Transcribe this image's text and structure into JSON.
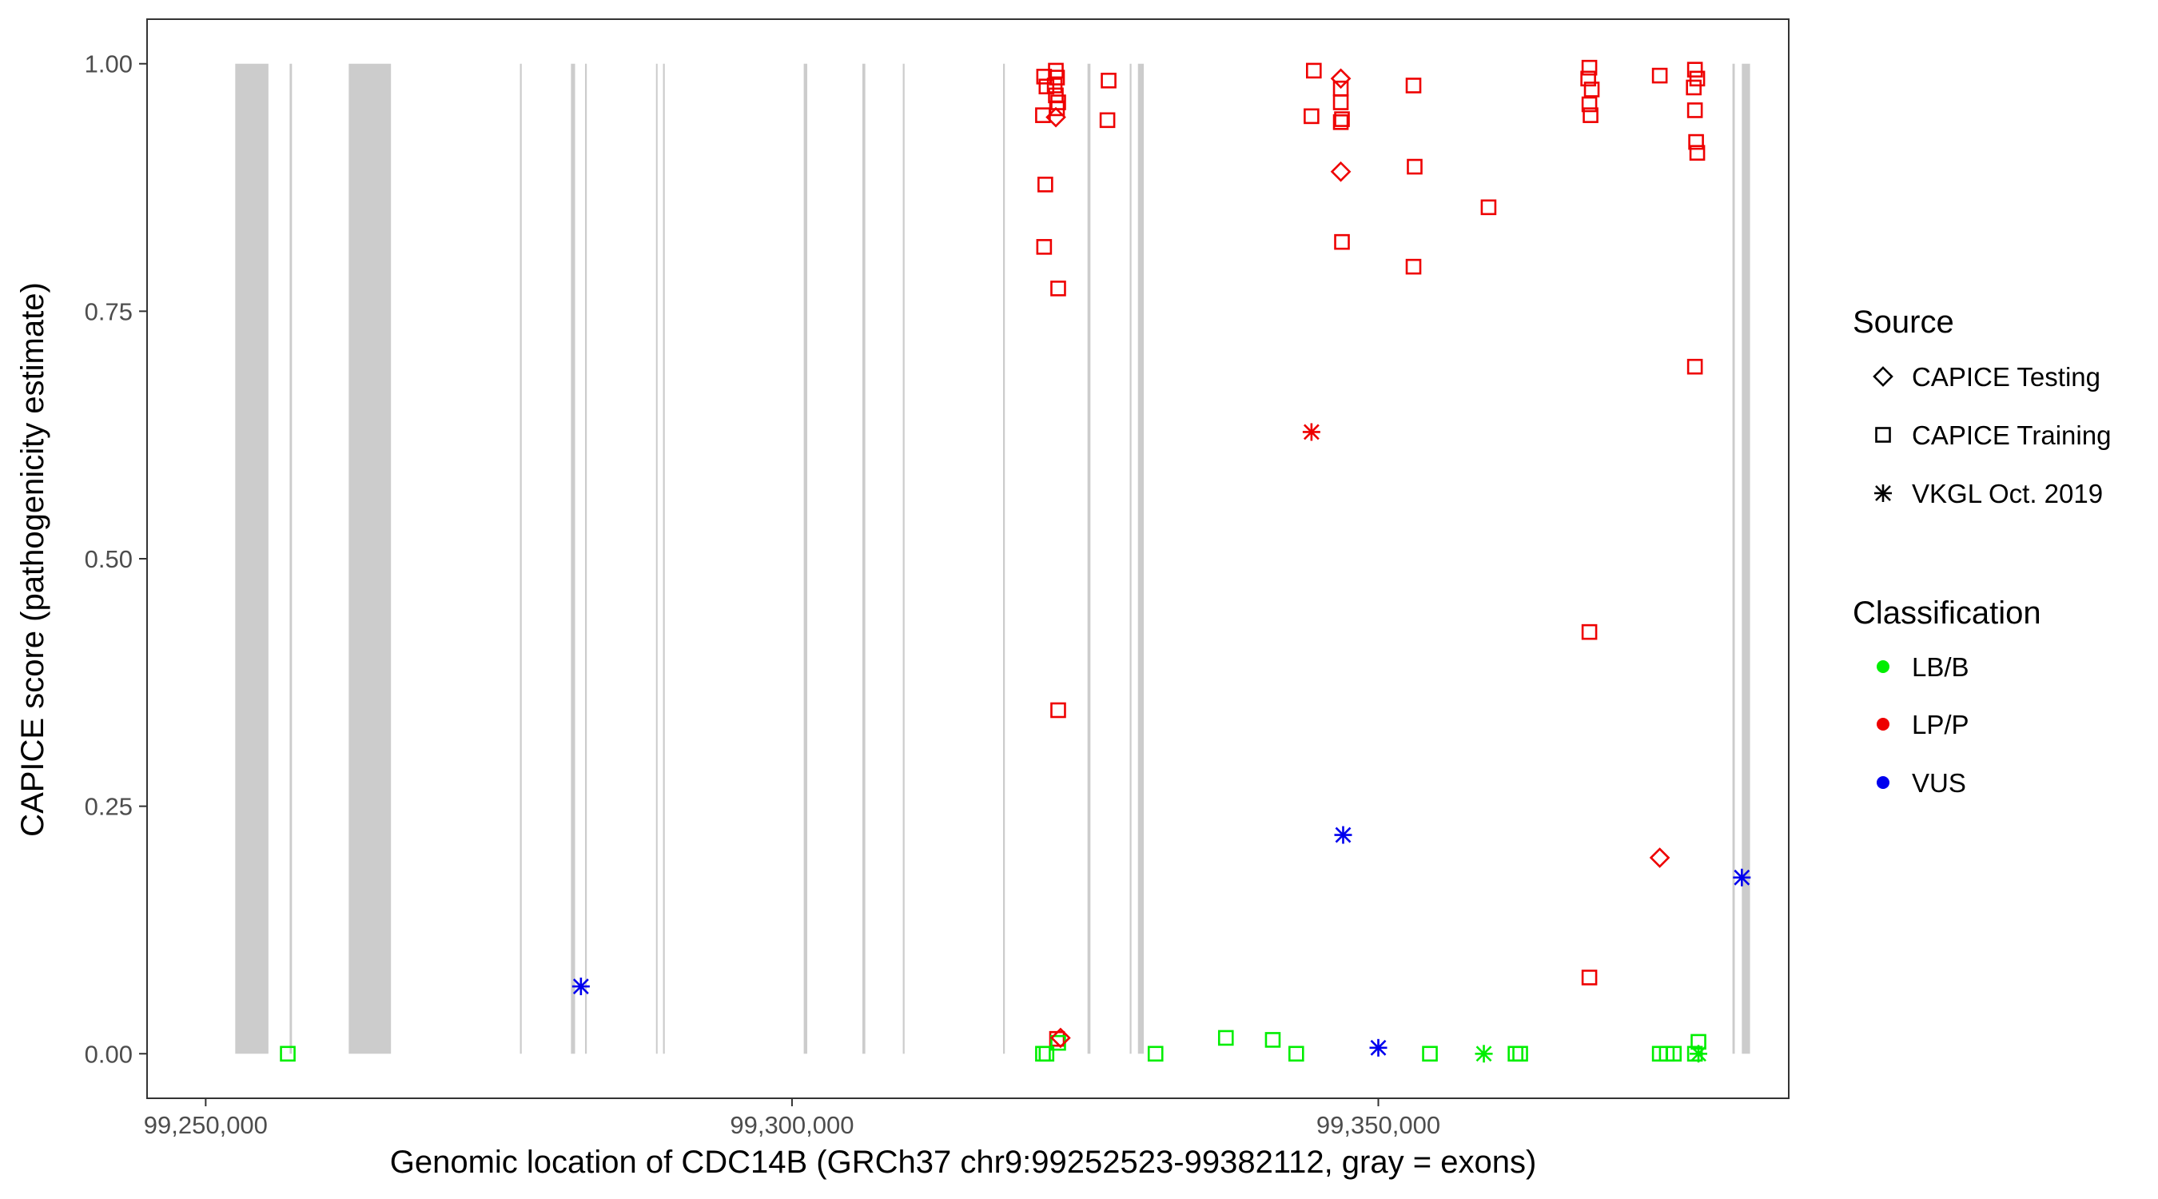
{
  "chart_data": {
    "type": "scatter",
    "xlabel": "Genomic location of CDC14B (GRCh37 chr9:99252523-99382112, gray = exons)",
    "ylabel": "CAPICE score (pathogenicity estimate)",
    "xlim": [
      99245000,
      99385000
    ],
    "ylim": [
      -0.045,
      1.045
    ],
    "x_ticks": [
      {
        "value": 99250000,
        "label": "99,250,000"
      },
      {
        "value": 99300000,
        "label": "99,300,000"
      },
      {
        "value": 99350000,
        "label": "99,350,000"
      }
    ],
    "y_ticks": [
      {
        "value": 0.0,
        "label": "0.00"
      },
      {
        "value": 0.25,
        "label": "0.25"
      },
      {
        "value": 0.5,
        "label": "0.50"
      },
      {
        "value": 0.75,
        "label": "0.75"
      },
      {
        "value": 1.0,
        "label": "1.00"
      }
    ],
    "grid": false,
    "exons": [
      [
        99252520,
        99255350
      ],
      [
        99257160,
        99257360
      ],
      [
        99262200,
        99265800
      ],
      [
        99276800,
        99276950
      ],
      [
        99281150,
        99281500
      ],
      [
        99282350,
        99282500
      ],
      [
        99288400,
        99288500
      ],
      [
        99289000,
        99289150
      ],
      [
        99301000,
        99301300
      ],
      [
        99306000,
        99306250
      ],
      [
        99309450,
        99309600
      ],
      [
        99318000,
        99318150
      ],
      [
        99325200,
        99325450
      ],
      [
        99328800,
        99328950
      ],
      [
        99329500,
        99330000
      ],
      [
        99380200,
        99380400
      ],
      [
        99381000,
        99381700
      ]
    ],
    "legend": {
      "placement": "right",
      "source_title": "Source",
      "source_entries": [
        {
          "label": "CAPICE Testing",
          "shape": "diamond"
        },
        {
          "label": "CAPICE Training",
          "shape": "square"
        },
        {
          "label": "VKGL Oct. 2019",
          "shape": "asterisk"
        }
      ],
      "class_title": "Classification",
      "class_entries": [
        {
          "label": "LB/B",
          "color": "#00ee00"
        },
        {
          "label": "LP/P",
          "color": "#ee0000"
        },
        {
          "label": "VUS",
          "color": "#0000ee"
        }
      ]
    },
    "series": [
      {
        "source": "CAPICE Training",
        "classification": "LP/P",
        "shape": "square",
        "color": "#ee0000",
        "points": [
          [
            99321500,
            0.987
          ],
          [
            99321700,
            0.977
          ],
          [
            99321400,
            0.948
          ],
          [
            99321600,
            0.878
          ],
          [
            99321500,
            0.815
          ],
          [
            99322500,
            0.993
          ],
          [
            99322600,
            0.986
          ],
          [
            99322400,
            0.978
          ],
          [
            99322500,
            0.968
          ],
          [
            99322700,
            0.961
          ],
          [
            99322600,
            0.955
          ],
          [
            99322700,
            0.773
          ],
          [
            99322700,
            0.347
          ],
          [
            99322600,
            0.015
          ],
          [
            99327000,
            0.983
          ],
          [
            99326900,
            0.943
          ],
          [
            99344500,
            0.993
          ],
          [
            99344300,
            0.947
          ],
          [
            99346800,
            0.975
          ],
          [
            99346800,
            0.961
          ],
          [
            99346900,
            0.944
          ],
          [
            99346800,
            0.941
          ],
          [
            99346900,
            0.82
          ],
          [
            99353000,
            0.978
          ],
          [
            99353100,
            0.896
          ],
          [
            99353000,
            0.795
          ],
          [
            99359400,
            0.855
          ],
          [
            99368000,
            0.996
          ],
          [
            99367900,
            0.985
          ],
          [
            99368200,
            0.974
          ],
          [
            99368000,
            0.959
          ],
          [
            99368100,
            0.948
          ],
          [
            99368000,
            0.426
          ],
          [
            99368000,
            0.077
          ],
          [
            99374000,
            0.988
          ],
          [
            99377000,
            0.994
          ],
          [
            99377200,
            0.985
          ],
          [
            99376900,
            0.976
          ],
          [
            99377000,
            0.953
          ],
          [
            99377100,
            0.921
          ],
          [
            99377200,
            0.91
          ],
          [
            99377000,
            0.694
          ]
        ]
      },
      {
        "source": "CAPICE Training",
        "classification": "LB/B",
        "shape": "square",
        "color": "#00ee00",
        "points": [
          [
            99257000,
            0.0
          ],
          [
            99321400,
            0.0
          ],
          [
            99321700,
            0.0
          ],
          [
            99322700,
            0.011
          ],
          [
            99331000,
            0.0
          ],
          [
            99337000,
            0.016
          ],
          [
            99341000,
            0.014
          ],
          [
            99343000,
            0.0
          ],
          [
            99354400,
            0.0
          ],
          [
            99361700,
            0.0
          ],
          [
            99362100,
            0.0
          ],
          [
            99374000,
            0.0
          ],
          [
            99374600,
            0.0
          ],
          [
            99375200,
            0.0
          ],
          [
            99377000,
            0.0
          ],
          [
            99377300,
            0.012
          ]
        ]
      },
      {
        "source": "CAPICE Testing",
        "classification": "LP/P",
        "shape": "diamond",
        "color": "#ee0000",
        "points": [
          [
            99322500,
            0.946
          ],
          [
            99346800,
            0.985
          ],
          [
            99346800,
            0.891
          ],
          [
            99322900,
            0.016
          ],
          [
            99374000,
            0.198
          ]
        ]
      },
      {
        "source": "VKGL Oct. 2019",
        "classification": "LP/P",
        "shape": "asterisk",
        "color": "#ee0000",
        "points": [
          [
            99344300,
            0.628
          ]
        ]
      },
      {
        "source": "VKGL Oct. 2019",
        "classification": "VUS",
        "shape": "asterisk",
        "color": "#0000ee",
        "points": [
          [
            99282000,
            0.068
          ],
          [
            99347000,
            0.221
          ],
          [
            99350000,
            0.006
          ],
          [
            99381000,
            0.178
          ]
        ]
      },
      {
        "source": "VKGL Oct. 2019",
        "classification": "LB/B",
        "shape": "asterisk",
        "color": "#00ee00",
        "points": [
          [
            99359000,
            0.0
          ],
          [
            99377300,
            0.0
          ]
        ]
      }
    ]
  }
}
